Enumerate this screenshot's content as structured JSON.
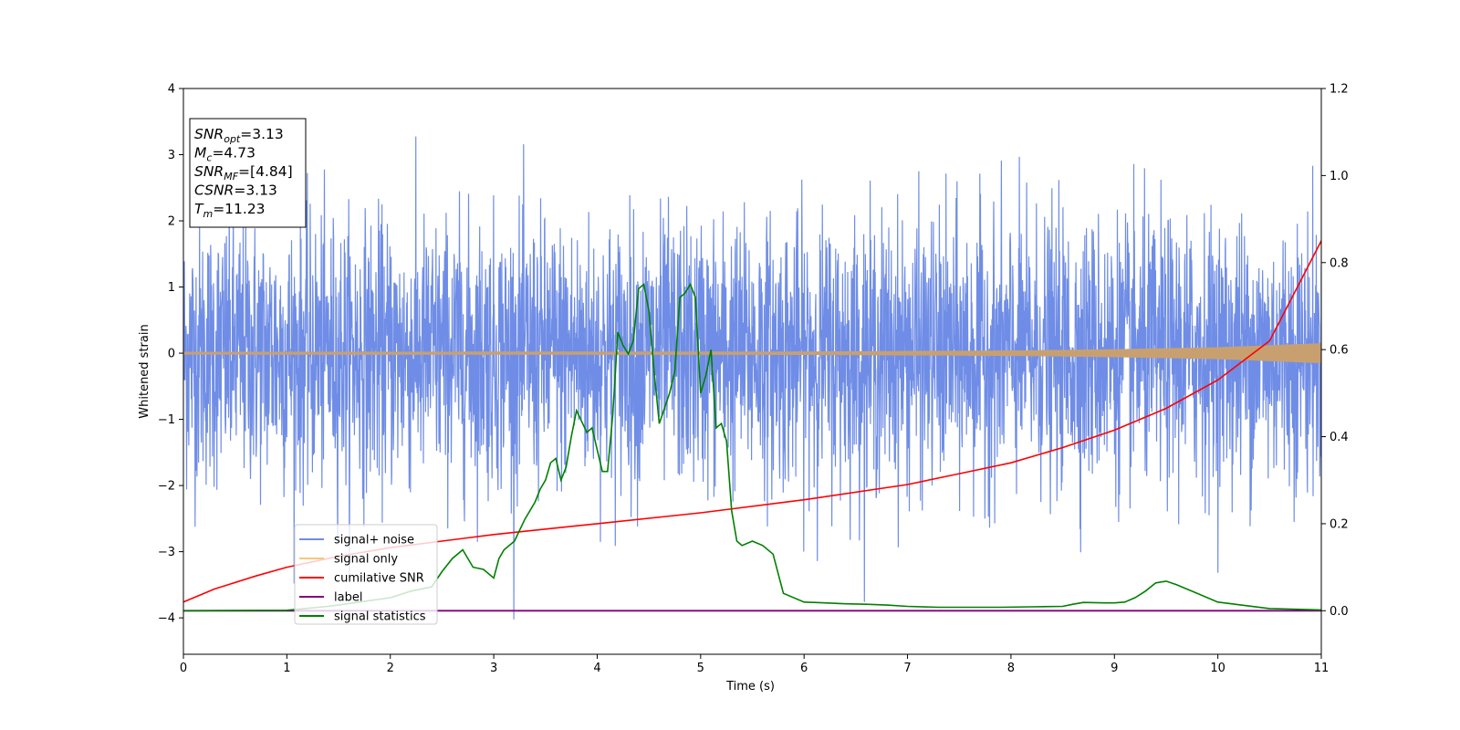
{
  "chart_data": {
    "type": "line",
    "xlabel": "Time (s)",
    "ylabel": "Whitened strain",
    "xlim": [
      0,
      11
    ],
    "ylim": [
      -4.55,
      4
    ],
    "y2lim": [
      -0.1,
      1.2
    ],
    "x_ticks": [
      0,
      1,
      2,
      3,
      4,
      5,
      6,
      7,
      8,
      9,
      10,
      11
    ],
    "y_ticks": [
      4,
      3,
      2,
      1,
      0,
      -1,
      -2,
      -3,
      -4
    ],
    "y_tick_labels": [
      "4",
      "3",
      "2",
      "1",
      "0",
      "−1",
      "−2",
      "−3",
      "−4"
    ],
    "y2_ticks": [
      0.0,
      0.2,
      0.4,
      0.6,
      0.8,
      1.0,
      1.2
    ],
    "y2_tick_labels": [
      "0.0",
      "0.2",
      "0.4",
      "0.6",
      "0.8",
      "1.0",
      "1.2"
    ],
    "annotation": {
      "lines": [
        {
          "sym": "SNR",
          "sub": "opt",
          "val": "=3.13"
        },
        {
          "sym": "M",
          "sub": "c",
          "val": "=4.73"
        },
        {
          "sym": "SNR",
          "sub": "MF",
          "val": "=[4.84]"
        },
        {
          "sym": "CSNR",
          "sub": "",
          "val": "=3.13"
        },
        {
          "sym": "T",
          "sub": "m",
          "val": "=11.23"
        }
      ]
    },
    "legend": {
      "placement": "lower-left",
      "entries": [
        {
          "label": "signal+ noise",
          "color": "#6f8de6"
        },
        {
          "label": "signal only",
          "color": "#f5c77e"
        },
        {
          "label": "cumilative SNR",
          "color": "#ff0000"
        },
        {
          "label": "label",
          "color": "#800080"
        },
        {
          "label": "signal statistics",
          "color": "#008000"
        }
      ]
    },
    "series": [
      {
        "name": "signal+ noise",
        "axis": "left",
        "style": "dense noise, approx. gaussian, sigma about 1.0, range about -4.2 to 3.6",
        "color": "#6f8de6"
      },
      {
        "name": "signal only",
        "axis": "left",
        "color": "#c8a070",
        "envelope": {
          "x": [
            0,
            6,
            8,
            9,
            10,
            11
          ],
          "amplitude": [
            0.02,
            0.025,
            0.04,
            0.06,
            0.09,
            0.15
          ]
        }
      },
      {
        "name": "cumilative SNR",
        "axis": "right",
        "color": "#ff0000",
        "x": [
          0,
          0.3,
          0.7,
          1,
          1.5,
          2,
          2.5,
          3,
          4,
          5,
          6,
          7,
          7.5,
          8,
          8.5,
          9,
          9.5,
          10,
          10.5,
          11
        ],
        "y": [
          0.02,
          0.05,
          0.08,
          0.1,
          0.125,
          0.145,
          0.16,
          0.175,
          0.2,
          0.225,
          0.255,
          0.29,
          0.315,
          0.34,
          0.375,
          0.415,
          0.465,
          0.53,
          0.62,
          0.85
        ]
      },
      {
        "name": "label",
        "axis": "right",
        "color": "#800080",
        "x": [
          0,
          11
        ],
        "y": [
          0.0,
          0.0
        ]
      },
      {
        "name": "signal statistics",
        "axis": "right",
        "color": "#008000",
        "x": [
          0,
          1,
          1.4,
          1.7,
          2,
          2.2,
          2.4,
          2.5,
          2.6,
          2.7,
          2.8,
          2.9,
          3.0,
          3.05,
          3.1,
          3.2,
          3.3,
          3.4,
          3.45,
          3.5,
          3.55,
          3.6,
          3.65,
          3.7,
          3.75,
          3.8,
          3.9,
          3.95,
          4.05,
          4.1,
          4.15,
          4.2,
          4.25,
          4.3,
          4.35,
          4.4,
          4.45,
          4.5,
          4.55,
          4.6,
          4.7,
          4.75,
          4.8,
          4.85,
          4.9,
          4.95,
          5.0,
          5.05,
          5.1,
          5.15,
          5.2,
          5.25,
          5.3,
          5.35,
          5.4,
          5.5,
          5.6,
          5.7,
          5.8,
          6.0,
          6.2,
          6.4,
          6.6,
          6.8,
          7.0,
          7.3,
          7.6,
          7.9,
          8.2,
          8.5,
          8.6,
          8.7,
          8.9,
          9.0,
          9.1,
          9.2,
          9.3,
          9.4,
          9.5,
          9.6,
          9.8,
          10.0,
          10.5,
          11.0
        ],
        "y": [
          0.0,
          0.001,
          0.01,
          0.02,
          0.03,
          0.045,
          0.055,
          0.09,
          0.12,
          0.14,
          0.1,
          0.095,
          0.075,
          0.12,
          0.14,
          0.16,
          0.21,
          0.25,
          0.28,
          0.3,
          0.34,
          0.35,
          0.3,
          0.33,
          0.4,
          0.46,
          0.41,
          0.42,
          0.32,
          0.32,
          0.45,
          0.64,
          0.61,
          0.59,
          0.62,
          0.74,
          0.75,
          0.69,
          0.55,
          0.43,
          0.5,
          0.55,
          0.72,
          0.73,
          0.75,
          0.72,
          0.5,
          0.54,
          0.6,
          0.42,
          0.43,
          0.39,
          0.23,
          0.16,
          0.15,
          0.16,
          0.15,
          0.13,
          0.04,
          0.02,
          0.018,
          0.016,
          0.015,
          0.013,
          0.01,
          0.008,
          0.008,
          0.008,
          0.009,
          0.01,
          0.015,
          0.019,
          0.018,
          0.018,
          0.02,
          0.03,
          0.045,
          0.064,
          0.068,
          0.06,
          0.04,
          0.02,
          0.005,
          0.002
        ]
      }
    ]
  }
}
